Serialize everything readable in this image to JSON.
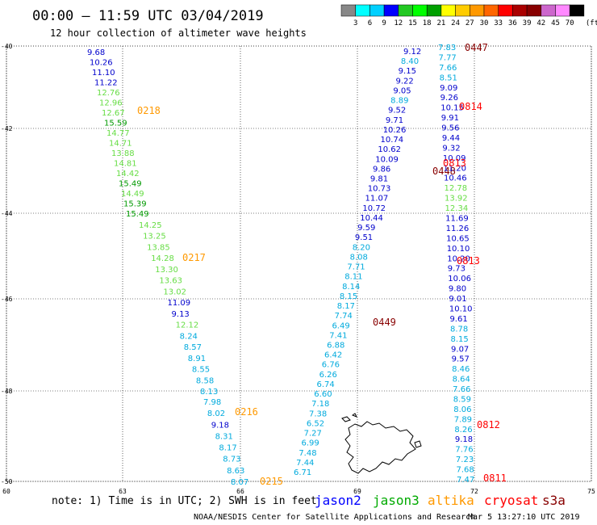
{
  "header": {
    "title": "00:00 – 11:59 UTC 03/04/2019",
    "subtitle": "12 hour collection of altimeter wave heights"
  },
  "colorbar": {
    "unit": "(ft)",
    "labels": [
      "3",
      "6",
      "9",
      "12",
      "15",
      "18",
      "21",
      "24",
      "27",
      "30",
      "33",
      "36",
      "39",
      "42",
      "45",
      "70"
    ],
    "colors": [
      "#888888",
      "#00ffff",
      "#00d0ff",
      "#0000ff",
      "#22c822",
      "#00ff00",
      "#00a000",
      "#ffff00",
      "#ffcc00",
      "#ff9900",
      "#ff6600",
      "#ff0000",
      "#aa0000",
      "#880000",
      "#cc66cc",
      "#ff88ff",
      "#000000"
    ]
  },
  "axes": {
    "lat_labels": [
      "-40",
      "-42",
      "-44",
      "-46",
      "-48",
      "-50"
    ],
    "lon_labels": [
      "60",
      "63",
      "66",
      "69",
      "72",
      "75"
    ]
  },
  "tracks": [
    {
      "name": "altika-0218",
      "pass_label": "0218",
      "pass_color": "#ff9900",
      "points": [
        {
          "v": "9.68",
          "c": "#0000cc"
        },
        {
          "v": "10.26",
          "c": "#0000cc"
        },
        {
          "v": "11.10",
          "c": "#0000cc"
        },
        {
          "v": "11.22",
          "c": "#0000cc"
        },
        {
          "v": "12.76",
          "c": "#66dd44"
        },
        {
          "v": "12.96",
          "c": "#66dd44"
        },
        {
          "v": "12.67",
          "c": "#66dd44"
        },
        {
          "v": "15.59",
          "c": "#009900"
        },
        {
          "v": "14.77",
          "c": "#66dd44"
        },
        {
          "v": "14.71",
          "c": "#66dd44"
        },
        {
          "v": "13.88",
          "c": "#66dd44"
        },
        {
          "v": "14.81",
          "c": "#66dd44"
        },
        {
          "v": "14.42",
          "c": "#66dd44"
        },
        {
          "v": "15.49",
          "c": "#009900"
        },
        {
          "v": "14.49",
          "c": "#66dd44"
        },
        {
          "v": "15.39",
          "c": "#009900"
        },
        {
          "v": "15.49",
          "c": "#009900"
        }
      ]
    },
    {
      "name": "altika-0217",
      "pass_label": "0217",
      "pass_color": "#ff9900",
      "points": [
        {
          "v": "14.25",
          "c": "#66dd44"
        },
        {
          "v": "13.25",
          "c": "#66dd44"
        },
        {
          "v": "13.85",
          "c": "#66dd44"
        },
        {
          "v": "14.28",
          "c": "#66dd44"
        },
        {
          "v": "13.30",
          "c": "#66dd44"
        },
        {
          "v": "13.63",
          "c": "#66dd44"
        },
        {
          "v": "13.02",
          "c": "#66dd44"
        },
        {
          "v": "11.09",
          "c": "#0000cc"
        },
        {
          "v": "9.13",
          "c": "#0000cc"
        },
        {
          "v": "12.12",
          "c": "#66dd44"
        },
        {
          "v": "8.24",
          "c": "#00aadd"
        },
        {
          "v": "8.57",
          "c": "#00aadd"
        },
        {
          "v": "8.91",
          "c": "#00aadd"
        },
        {
          "v": "8.55",
          "c": "#00aadd"
        },
        {
          "v": "8.58",
          "c": "#00aadd"
        },
        {
          "v": "8.13",
          "c": "#00aadd"
        }
      ]
    },
    {
      "name": "altika-0216",
      "pass_label": "0216",
      "pass_color": "#ff9900",
      "points": [
        {
          "v": "7.98",
          "c": "#00aadd"
        },
        {
          "v": "8.02",
          "c": "#00aadd"
        },
        {
          "v": "9.18",
          "c": "#0000cc"
        },
        {
          "v": "8.31",
          "c": "#00aadd"
        },
        {
          "v": "8.17",
          "c": "#00aadd"
        },
        {
          "v": "8.73",
          "c": "#00aadd"
        },
        {
          "v": "8.63",
          "c": "#00aadd"
        },
        {
          "v": "8.07",
          "c": "#00aadd"
        }
      ]
    },
    {
      "name": "altika-0215",
      "pass_label": "0215",
      "pass_color": "#ff9900",
      "points": []
    },
    {
      "name": "cryosat-0449",
      "pass_label": "0449",
      "pass_color": "#880000",
      "points": [
        {
          "v": "9.12",
          "c": "#0000cc"
        },
        {
          "v": "8.40",
          "c": "#00aadd"
        },
        {
          "v": "9.15",
          "c": "#0000cc"
        },
        {
          "v": "9.22",
          "c": "#0000cc"
        },
        {
          "v": "9.05",
          "c": "#0000cc"
        },
        {
          "v": "8.89",
          "c": "#00aadd"
        },
        {
          "v": "9.52",
          "c": "#0000cc"
        },
        {
          "v": "9.71",
          "c": "#0000cc"
        },
        {
          "v": "10.26",
          "c": "#0000cc"
        },
        {
          "v": "10.74",
          "c": "#0000cc"
        },
        {
          "v": "10.62",
          "c": "#0000cc"
        },
        {
          "v": "10.09",
          "c": "#0000cc"
        },
        {
          "v": "9.86",
          "c": "#0000cc"
        },
        {
          "v": "9.81",
          "c": "#0000cc"
        },
        {
          "v": "10.73",
          "c": "#0000cc"
        },
        {
          "v": "11.07",
          "c": "#0000cc"
        },
        {
          "v": "10.72",
          "c": "#0000cc"
        },
        {
          "v": "10.44",
          "c": "#0000cc"
        },
        {
          "v": "9.59",
          "c": "#0000cc"
        },
        {
          "v": "9.51",
          "c": "#0000cc"
        },
        {
          "v": "8.20",
          "c": "#00aadd"
        },
        {
          "v": "8.08",
          "c": "#00aadd"
        },
        {
          "v": "7.71",
          "c": "#00aadd"
        },
        {
          "v": "8.11",
          "c": "#00aadd"
        },
        {
          "v": "8.14",
          "c": "#00aadd"
        },
        {
          "v": "8.15",
          "c": "#00aadd"
        },
        {
          "v": "8.17",
          "c": "#00aadd"
        },
        {
          "v": "7.74",
          "c": "#00aadd"
        },
        {
          "v": "6.49",
          "c": "#00aadd"
        },
        {
          "v": "7.41",
          "c": "#00aadd"
        },
        {
          "v": "6.88",
          "c": "#00aadd"
        },
        {
          "v": "6.42",
          "c": "#00aadd"
        },
        {
          "v": "6.76",
          "c": "#00aadd"
        },
        {
          "v": "6.26",
          "c": "#00aadd"
        },
        {
          "v": "6.74",
          "c": "#00aadd"
        },
        {
          "v": "6.60",
          "c": "#00aadd"
        },
        {
          "v": "7.18",
          "c": "#00aadd"
        },
        {
          "v": "7.38",
          "c": "#00aadd"
        },
        {
          "v": "6.52",
          "c": "#00aadd"
        },
        {
          "v": "7.27",
          "c": "#00aadd"
        },
        {
          "v": "6.99",
          "c": "#00aadd"
        },
        {
          "v": "7.48",
          "c": "#00aadd"
        },
        {
          "v": "7.44",
          "c": "#00aadd"
        },
        {
          "v": "6.71",
          "c": "#00aadd"
        }
      ]
    },
    {
      "name": "cryosat-0448",
      "pass_label": "0448",
      "pass_color": "#880000",
      "points": []
    },
    {
      "name": "s3a-0447",
      "pass_label": "0447",
      "pass_color": "#880000",
      "points": [
        {
          "v": "7.83",
          "c": "#00aadd"
        },
        {
          "v": "7.77",
          "c": "#00aadd"
        },
        {
          "v": "7.66",
          "c": "#00aadd"
        },
        {
          "v": "8.51",
          "c": "#00aadd"
        },
        {
          "v": "9.09",
          "c": "#0000cc"
        },
        {
          "v": "9.26",
          "c": "#0000cc"
        },
        {
          "v": "10.15",
          "c": "#0000cc"
        },
        {
          "v": "9.91",
          "c": "#0000cc"
        },
        {
          "v": "9.56",
          "c": "#0000cc"
        },
        {
          "v": "9.44",
          "c": "#0000cc"
        },
        {
          "v": "9.32",
          "c": "#0000cc"
        },
        {
          "v": "10.09",
          "c": "#0000cc"
        },
        {
          "v": "11.20",
          "c": "#0000cc"
        },
        {
          "v": "10.46",
          "c": "#0000cc"
        },
        {
          "v": "12.78",
          "c": "#66dd44"
        },
        {
          "v": "13.92",
          "c": "#66dd44"
        },
        {
          "v": "12.34",
          "c": "#66dd44"
        },
        {
          "v": "11.69",
          "c": "#0000cc"
        },
        {
          "v": "11.26",
          "c": "#0000cc"
        },
        {
          "v": "10.65",
          "c": "#0000cc"
        },
        {
          "v": "10.10",
          "c": "#0000cc"
        },
        {
          "v": "10.20",
          "c": "#0000cc"
        },
        {
          "v": "9.73",
          "c": "#0000cc"
        },
        {
          "v": "10.06",
          "c": "#0000cc"
        },
        {
          "v": "9.80",
          "c": "#0000cc"
        },
        {
          "v": "9.01",
          "c": "#0000cc"
        },
        {
          "v": "10.10",
          "c": "#0000cc"
        },
        {
          "v": "9.61",
          "c": "#0000cc"
        },
        {
          "v": "8.78",
          "c": "#00aadd"
        },
        {
          "v": "8.15",
          "c": "#00aadd"
        },
        {
          "v": "9.07",
          "c": "#0000cc"
        },
        {
          "v": "9.57",
          "c": "#0000cc"
        },
        {
          "v": "8.46",
          "c": "#00aadd"
        },
        {
          "v": "8.64",
          "c": "#00aadd"
        },
        {
          "v": "7.66",
          "c": "#00aadd"
        },
        {
          "v": "8.59",
          "c": "#00aadd"
        },
        {
          "v": "8.06",
          "c": "#00aadd"
        },
        {
          "v": "7.89",
          "c": "#00aadd"
        },
        {
          "v": "8.26",
          "c": "#00aadd"
        },
        {
          "v": "9.18",
          "c": "#0000cc"
        },
        {
          "v": "7.76",
          "c": "#00aadd"
        },
        {
          "v": "7.23",
          "c": "#00aadd"
        },
        {
          "v": "7.68",
          "c": "#00aadd"
        },
        {
          "v": "7.47",
          "c": "#00aadd"
        }
      ]
    },
    {
      "name": "jason-0814",
      "pass_label": "0814",
      "pass_color": "#ff0000",
      "points": []
    },
    {
      "name": "jason-0813a",
      "pass_label": "0813",
      "pass_color": "#ff0000",
      "points": []
    },
    {
      "name": "jason-0813b",
      "pass_label": "0813",
      "pass_color": "#ff0000",
      "points": []
    },
    {
      "name": "jason-0812",
      "pass_label": "0812",
      "pass_color": "#ff0000",
      "points": []
    },
    {
      "name": "jason-0811",
      "pass_label": "0811",
      "pass_color": "#ff0000",
      "points": []
    }
  ],
  "footer": {
    "note": "note: 1) Time is in UTC; 2) SWH is in feet",
    "sats": [
      {
        "name": "jason2",
        "color": "#0000ff"
      },
      {
        "name": "jason3",
        "color": "#00aa00"
      },
      {
        "name": "altika",
        "color": "#ff9900"
      },
      {
        "name": "cryosat",
        "color": "#ff0000"
      },
      {
        "name": "s3a",
        "color": "#880000"
      }
    ],
    "credit": "NOAA/NESDIS Center for Satellite Applications and Research",
    "timestamp": "Mar  5 13:27:10 UTC 2019"
  }
}
